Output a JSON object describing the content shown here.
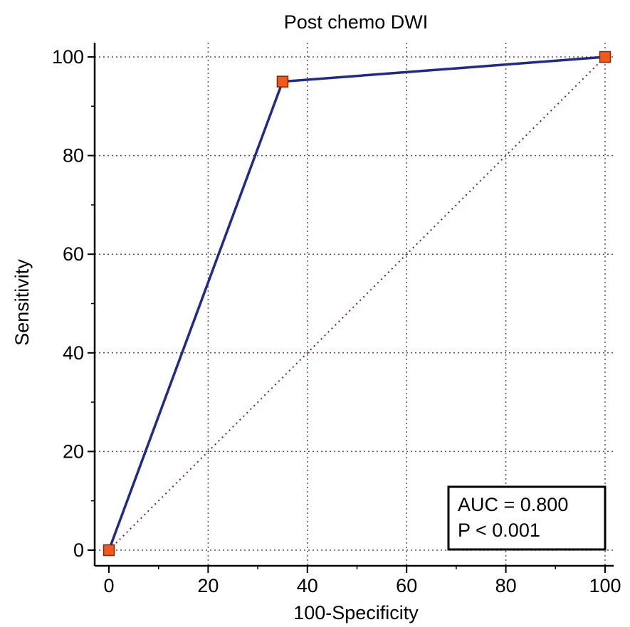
{
  "chart_data": {
    "type": "line",
    "title": "Post chemo DWI",
    "xlabel": "100-Specificity",
    "ylabel": "Sensitivity",
    "xlim": [
      0,
      100
    ],
    "ylim": [
      0,
      100
    ],
    "x_ticks": [
      0,
      20,
      40,
      60,
      80,
      100
    ],
    "y_ticks": [
      0,
      20,
      40,
      60,
      80,
      100
    ],
    "x_tick_labels": [
      "0",
      "20",
      "40",
      "60",
      "80",
      "100"
    ],
    "y_tick_labels": [
      "0",
      "20",
      "40",
      "60",
      "80",
      "100"
    ],
    "grid": true,
    "series": [
      {
        "style": "solid",
        "color": "#1f2a8c",
        "marker": "square",
        "marker_color": "#f25a1c",
        "points": [
          {
            "x": 0,
            "y": 0
          },
          {
            "x": 35,
            "y": 95
          },
          {
            "x": 100,
            "y": 100
          }
        ]
      },
      {
        "style": "dotted",
        "color": "#8b1a1a",
        "points": [
          {
            "x": 0,
            "y": 0
          },
          {
            "x": 100,
            "y": 100
          }
        ]
      }
    ],
    "annotation": {
      "lines": [
        "AUC = 0.800",
        "P < 0.001"
      ],
      "position": "bottom-right"
    }
  }
}
